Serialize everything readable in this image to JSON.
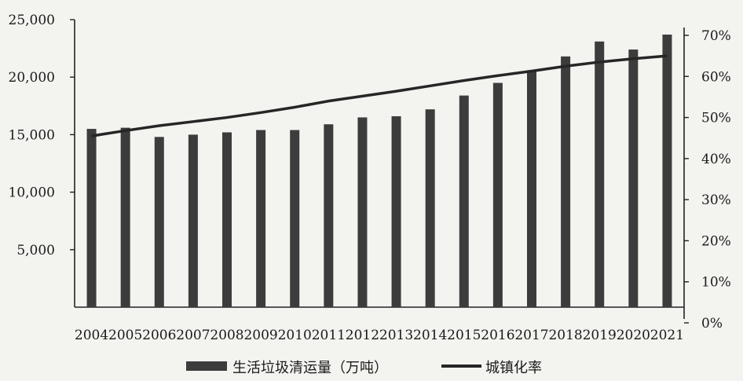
{
  "chart_data": {
    "type": "bar",
    "categories": [
      "2004",
      "2005",
      "2006",
      "2007",
      "2008",
      "2009",
      "2010",
      "2011",
      "2012",
      "2013",
      "2014",
      "2015",
      "2016",
      "2017",
      "2018",
      "2019",
      "2020",
      "2021"
    ],
    "series": [
      {
        "name": "生活垃圾清运量（万吨）",
        "type": "bar",
        "axis": "left",
        "color": "#3c3c3c",
        "values": [
          15500,
          15600,
          14800,
          15000,
          15200,
          15400,
          15400,
          15900,
          16500,
          16600,
          17200,
          18400,
          19500,
          20600,
          21800,
          23100,
          22400,
          23700
        ]
      },
      {
        "name": "城镇化率",
        "type": "line",
        "axis": "right",
        "color": "#262626",
        "values": [
          45.5,
          46.8,
          48.0,
          49.0,
          50.0,
          51.2,
          52.5,
          54.0,
          55.2,
          56.4,
          57.7,
          59.0,
          60.2,
          61.3,
          62.5,
          63.5,
          64.3,
          65.0
        ]
      }
    ],
    "y_left": {
      "ylim": [
        0,
        25000
      ],
      "tick_labels": [
        "5,000",
        "10,000",
        "15,000",
        "20,000",
        "25,000"
      ],
      "tick_values": [
        5000,
        10000,
        15000,
        20000,
        25000
      ]
    },
    "y_right": {
      "ylim": [
        0,
        70
      ],
      "tick_labels": [
        "0%",
        "10%",
        "20%",
        "30%",
        "40%",
        "50%",
        "60%",
        "70%"
      ],
      "tick_values": [
        0,
        10,
        20,
        30,
        40,
        50,
        60,
        70
      ]
    },
    "grid": false,
    "legend_position": "bottom",
    "title": "",
    "xlabel": "",
    "ylabel": ""
  }
}
